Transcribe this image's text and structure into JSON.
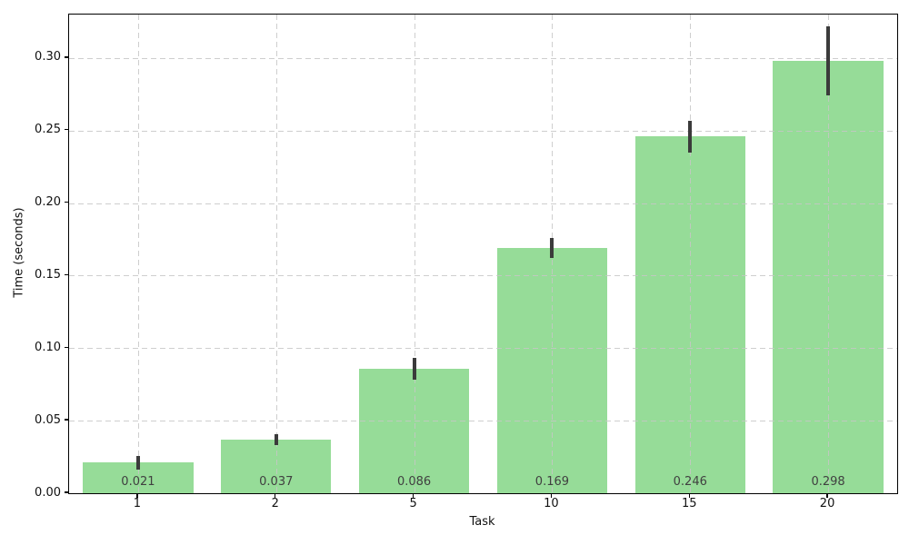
{
  "chart_data": {
    "type": "bar",
    "title": "",
    "xlabel": "Task",
    "ylabel": "Time (seconds)",
    "categories": [
      "1",
      "2",
      "5",
      "10",
      "15",
      "20"
    ],
    "values": [
      0.021,
      0.037,
      0.086,
      0.169,
      0.246,
      0.298
    ],
    "errors": [
      0.0045,
      0.004,
      0.0075,
      0.007,
      0.011,
      0.024
    ],
    "bar_labels": [
      "0.021",
      "0.037",
      "0.086",
      "0.169",
      "0.246",
      "0.298"
    ],
    "ylim": [
      0,
      0.33
    ],
    "yticks": [
      0.0,
      0.05,
      0.1,
      0.15,
      0.2,
      0.25,
      0.3
    ],
    "ytick_labels": [
      "0.00",
      "0.05",
      "0.10",
      "0.15",
      "0.20",
      "0.25",
      "0.30"
    ],
    "grid": true,
    "grid_style": "dashed",
    "legend": "none",
    "colors": {
      "bar": "#96dc98",
      "error_bar": "#3b3b3b",
      "grid": "#c6c6c6",
      "bar_label_text": "#404040",
      "axis_text": "#111111",
      "spine": "#000000",
      "background": "#ffffff"
    }
  }
}
